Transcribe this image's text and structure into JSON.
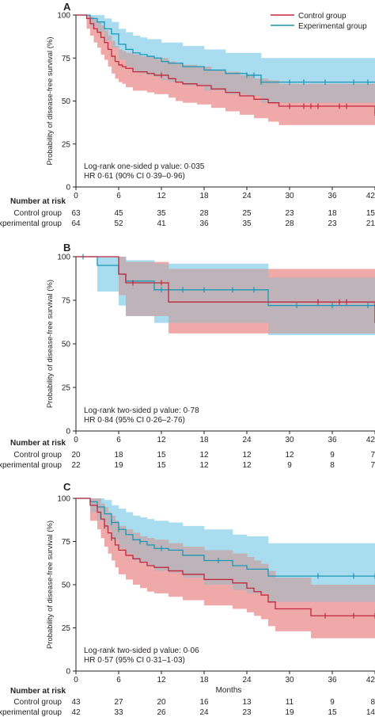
{
  "colors": {
    "control": "#c0283d",
    "experimental": "#1a97b4",
    "control_band": "#f0a9a9",
    "experimental_band": "#a9dcef",
    "overlap_band": "#bdb3b8",
    "axis": "#231f20"
  },
  "legend": {
    "position": "top-right",
    "control_label": "Control group",
    "experimental_label": "Experimental group"
  },
  "chart_data": [
    {
      "panel": "A",
      "type": "line",
      "step": true,
      "xlabel": "",
      "ylabel": "Probability of disease-free survival (%)",
      "xlim": [
        0,
        42
      ],
      "ylim": [
        0,
        100
      ],
      "xticks": [
        0,
        6,
        12,
        18,
        24,
        30,
        36,
        42
      ],
      "yticks": [
        0,
        25,
        50,
        75,
        100
      ],
      "annotation_lines": [
        "Log-rank one-sided p value: 0·035",
        "HR 0·61 (90% CI 0·39–0·96)"
      ],
      "series": [
        {
          "name": "Control group",
          "x": [
            0,
            1.5,
            2,
            2.5,
            3,
            3.5,
            4,
            4.5,
            5,
            5.5,
            6,
            6.5,
            7,
            8,
            9,
            10,
            11,
            12,
            13,
            14,
            15,
            17,
            19,
            21,
            23,
            25,
            27,
            28.5,
            42
          ],
          "y": [
            100,
            98,
            95,
            92,
            90,
            87,
            84,
            80,
            76,
            73,
            71,
            70,
            69,
            67,
            67,
            66,
            65,
            65,
            63,
            61,
            60,
            59,
            57,
            55,
            53,
            51,
            49,
            47,
            43
          ],
          "censor_x": [
            12,
            30,
            32,
            33,
            34,
            37,
            38,
            42
          ],
          "ci_upper": [
            100,
            100,
            99,
            98,
            96,
            94,
            91,
            88,
            85,
            82,
            80,
            79,
            78,
            77,
            76,
            76,
            75,
            75,
            73,
            72,
            71,
            70,
            68,
            67,
            65,
            63,
            62,
            60,
            57
          ],
          "ci_lower": [
            100,
            92,
            88,
            84,
            81,
            77,
            74,
            70,
            66,
            63,
            61,
            60,
            58,
            56,
            56,
            55,
            54,
            54,
            52,
            50,
            49,
            48,
            46,
            44,
            42,
            40,
            38,
            36,
            32
          ]
        },
        {
          "name": "Experimental group",
          "x": [
            0,
            2,
            3,
            4,
            5,
            6,
            7,
            8,
            9,
            10,
            11,
            12,
            13,
            15,
            18,
            21,
            24,
            26,
            42
          ],
          "y": [
            100,
            98,
            96,
            92,
            89,
            83,
            80,
            78,
            77,
            76,
            75,
            73,
            72,
            70,
            68,
            66,
            65,
            61,
            61
          ],
          "censor_x": [
            24,
            25,
            26,
            30,
            32,
            35,
            39,
            41
          ],
          "ci_upper": [
            100,
            100,
            100,
            98,
            96,
            92,
            90,
            88,
            87,
            86,
            86,
            84,
            84,
            82,
            80,
            78,
            78,
            75,
            75
          ],
          "ci_lower": [
            100,
            93,
            90,
            85,
            81,
            74,
            70,
            67,
            66,
            65,
            64,
            62,
            61,
            59,
            56,
            54,
            53,
            49,
            49
          ]
        }
      ],
      "number_at_risk": {
        "title": "Number at risk",
        "rows": [
          {
            "label": "Control group",
            "values": [
              "63",
              "45",
              "35",
              "28",
              "25",
              "23",
              "18",
              "15"
            ]
          },
          {
            "label": "Experimental group",
            "values": [
              "64",
              "52",
              "41",
              "36",
              "35",
              "28",
              "23",
              "21"
            ]
          }
        ]
      }
    },
    {
      "panel": "B",
      "type": "line",
      "step": true,
      "xlabel": "",
      "ylabel": "Probability of disease-free survival (%)",
      "xlim": [
        0,
        42
      ],
      "ylim": [
        0,
        100
      ],
      "xticks": [
        0,
        6,
        12,
        18,
        24,
        30,
        36,
        42
      ],
      "yticks": [
        0,
        25,
        50,
        75,
        100
      ],
      "annotation_lines": [
        "Log-rank two-sided p value: 0·78",
        "HR 0·84 (95% CI 0·26–2·76)"
      ],
      "series": [
        {
          "name": "Control group",
          "x": [
            0,
            5,
            6,
            7,
            12,
            13,
            27,
            41.5,
            42
          ],
          "y": [
            100,
            100,
            90,
            85,
            85,
            74,
            74,
            74,
            62
          ],
          "censor_x": [
            8,
            12,
            34,
            37,
            38
          ],
          "ci_upper": [
            100,
            100,
            100,
            97,
            97,
            93,
            93,
            93,
            88
          ],
          "ci_lower": [
            100,
            100,
            78,
            66,
            66,
            56,
            56,
            56,
            42
          ]
        },
        {
          "name": "Experimental group",
          "x": [
            0,
            3,
            6,
            7,
            11,
            27,
            42
          ],
          "y": [
            100,
            95,
            90,
            86,
            81,
            72,
            72
          ],
          "censor_x": [
            1,
            12,
            15,
            18,
            22,
            25,
            31,
            36,
            41
          ],
          "ci_upper": [
            100,
            100,
            100,
            98,
            96,
            88,
            88
          ],
          "ci_lower": [
            100,
            80,
            72,
            66,
            62,
            55,
            55
          ]
        }
      ],
      "number_at_risk": {
        "title": "Number at risk",
        "rows": [
          {
            "label": "Control group",
            "values": [
              "20",
              "18",
              "15",
              "12",
              "12",
              "12",
              "9",
              "7"
            ]
          },
          {
            "label": "Experimental group",
            "values": [
              "22",
              "19",
              "15",
              "12",
              "12",
              "9",
              "8",
              "7"
            ]
          }
        ]
      }
    },
    {
      "panel": "C",
      "type": "line",
      "step": true,
      "xlabel": "Months",
      "ylabel": "Probability of disease-free survival (%)",
      "xlim": [
        0,
        42
      ],
      "ylim": [
        0,
        100
      ],
      "xticks": [
        0,
        6,
        12,
        18,
        24,
        30,
        36,
        42
      ],
      "yticks": [
        0,
        25,
        50,
        75,
        100
      ],
      "annotation_lines": [
        "Log-rank two-sided p value: 0·06",
        "HR 0·57 (95% CI 0·31–1·03)"
      ],
      "series": [
        {
          "name": "Control group",
          "x": [
            0,
            2,
            3,
            3.5,
            4,
            4.5,
            5,
            5.5,
            6,
            7,
            8,
            9,
            10,
            11,
            13,
            15,
            18,
            22,
            24,
            25,
            26,
            27,
            28,
            33,
            42
          ],
          "y": [
            100,
            96,
            92,
            88,
            84,
            80,
            77,
            73,
            70,
            67,
            65,
            63,
            61,
            60,
            58,
            56,
            53,
            51,
            48,
            46,
            44,
            40,
            36,
            32,
            32
          ],
          "censor_x": [
            4,
            5,
            35,
            39,
            42
          ],
          "ci_upper": [
            100,
            100,
            100,
            97,
            95,
            92,
            90,
            87,
            84,
            82,
            80,
            78,
            77,
            76,
            74,
            72,
            70,
            68,
            66,
            64,
            62,
            58,
            54,
            50,
            50
          ],
          "ci_lower": [
            100,
            87,
            82,
            77,
            72,
            68,
            64,
            60,
            56,
            53,
            50,
            48,
            46,
            45,
            43,
            41,
            38,
            36,
            34,
            32,
            30,
            26,
            23,
            19,
            19
          ]
        },
        {
          "name": "Experimental group",
          "x": [
            0,
            2,
            3,
            4,
            5,
            6,
            7,
            8,
            9,
            10,
            11,
            13,
            15,
            18,
            22,
            24,
            27,
            42
          ],
          "y": [
            100,
            98,
            95,
            91,
            86,
            82,
            79,
            76,
            75,
            73,
            71,
            70,
            67,
            64,
            61,
            59,
            55,
            55
          ],
          "censor_x": [
            5,
            6,
            9,
            12,
            20,
            34,
            39,
            42
          ],
          "ci_upper": [
            100,
            100,
            100,
            99,
            96,
            94,
            92,
            90,
            89,
            88,
            87,
            86,
            84,
            82,
            79,
            78,
            74,
            74
          ],
          "ci_lower": [
            100,
            92,
            87,
            82,
            76,
            71,
            68,
            64,
            63,
            61,
            58,
            57,
            54,
            50,
            47,
            45,
            40,
            40
          ]
        }
      ],
      "number_at_risk": {
        "title": "Number at risk",
        "rows": [
          {
            "label": "Control group",
            "values": [
              "43",
              "27",
              "20",
              "16",
              "13",
              "11",
              "9",
              "8"
            ]
          },
          {
            "label": "Experimental group",
            "values": [
              "42",
              "33",
              "26",
              "24",
              "23",
              "19",
              "15",
              "14"
            ]
          }
        ]
      }
    }
  ]
}
